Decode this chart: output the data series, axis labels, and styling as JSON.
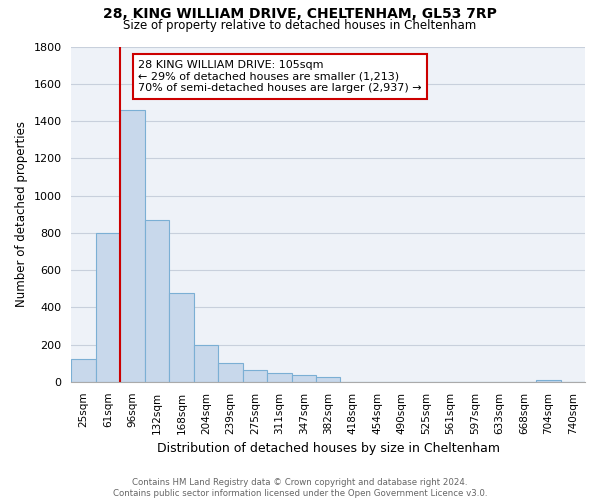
{
  "title_line1": "28, KING WILLIAM DRIVE, CHELTENHAM, GL53 7RP",
  "title_line2": "Size of property relative to detached houses in Cheltenham",
  "xlabel": "Distribution of detached houses by size in Cheltenham",
  "ylabel": "Number of detached properties",
  "bar_color": "#c8d8eb",
  "bar_edge_color": "#7bafd4",
  "highlight_line_color": "#cc0000",
  "categories": [
    "25sqm",
    "61sqm",
    "96sqm",
    "132sqm",
    "168sqm",
    "204sqm",
    "239sqm",
    "275sqm",
    "311sqm",
    "347sqm",
    "382sqm",
    "418sqm",
    "454sqm",
    "490sqm",
    "525sqm",
    "561sqm",
    "597sqm",
    "633sqm",
    "668sqm",
    "704sqm",
    "740sqm"
  ],
  "values": [
    120,
    800,
    1460,
    870,
    475,
    200,
    100,
    65,
    50,
    35,
    25,
    0,
    0,
    0,
    0,
    0,
    0,
    0,
    0,
    10,
    0
  ],
  "ylim": [
    0,
    1800
  ],
  "yticks": [
    0,
    200,
    400,
    600,
    800,
    1000,
    1200,
    1400,
    1600,
    1800
  ],
  "annotation_title": "28 KING WILLIAM DRIVE: 105sqm",
  "annotation_line1": "← 29% of detached houses are smaller (1,213)",
  "annotation_line2": "70% of semi-detached houses are larger (2,937) →",
  "box_color": "#ffffff",
  "box_edge_color": "#cc0000",
  "footer_line1": "Contains HM Land Registry data © Crown copyright and database right 2024.",
  "footer_line2": "Contains public sector information licensed under the Open Government Licence v3.0.",
  "background_color": "#ffffff",
  "grid_color": "#c8d0dc",
  "highlight_idx": 2
}
